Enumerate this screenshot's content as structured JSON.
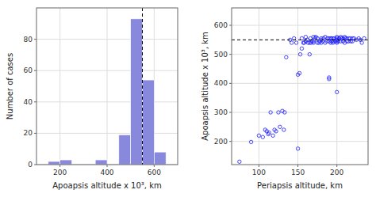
{
  "chart_data": [
    {
      "type": "histogram",
      "bins": [
        100,
        150,
        200,
        250,
        300,
        350,
        400,
        450,
        500,
        550,
        600,
        650,
        700
      ],
      "values": [
        0,
        2,
        3,
        0,
        0,
        3,
        0,
        19,
        93,
        54,
        8,
        0
      ],
      "color": "#8888dd",
      "xlim": [
        100,
        700
      ],
      "ylim": [
        0,
        100
      ],
      "xticks": [
        200,
        400,
        600
      ],
      "yticks": [
        0,
        20,
        40,
        60,
        80
      ],
      "vline": 550,
      "xlabel": "Apoapsis altitude x 10³, km",
      "ylabel": "Number of cases",
      "grid": true
    },
    {
      "type": "scatter",
      "x": [
        75,
        90,
        100,
        105,
        108,
        110,
        112,
        113,
        115,
        118,
        120,
        122,
        125,
        127,
        130,
        132,
        133,
        135,
        140,
        142,
        145,
        148,
        150,
        150,
        152,
        153,
        155,
        155,
        157,
        158,
        160,
        160,
        162,
        163,
        165,
        165,
        166,
        167,
        168,
        170,
        170,
        170,
        172,
        173,
        175,
        175,
        177,
        178,
        180,
        180,
        180,
        182,
        183,
        185,
        185,
        187,
        188,
        190,
        190,
        190,
        190,
        192,
        192,
        193,
        193,
        195,
        195,
        195,
        197,
        198,
        200,
        200,
        200,
        200,
        200,
        200,
        202,
        203,
        205,
        205,
        205,
        207,
        208,
        210,
        210,
        210,
        212,
        213,
        215,
        215,
        217,
        218,
        220,
        220,
        222,
        225,
        228,
        230,
        232,
        235
      ],
      "values": [
        130,
        198,
        220,
        215,
        240,
        235,
        225,
        230,
        300,
        220,
        240,
        235,
        300,
        250,
        305,
        240,
        300,
        490,
        550,
        540,
        555,
        540,
        175,
        430,
        435,
        500,
        520,
        555,
        540,
        540,
        560,
        545,
        550,
        540,
        500,
        540,
        555,
        540,
        545,
        560,
        540,
        545,
        555,
        560,
        540,
        555,
        540,
        545,
        540,
        555,
        550,
        545,
        555,
        540,
        560,
        545,
        555,
        415,
        420,
        545,
        555,
        540,
        555,
        545,
        555,
        540,
        545,
        555,
        555,
        545,
        540,
        550,
        545,
        555,
        560,
        370,
        545,
        555,
        545,
        555,
        560,
        555,
        545,
        540,
        555,
        560,
        555,
        545,
        545,
        555,
        555,
        545,
        555,
        545,
        555,
        550,
        555,
        550,
        540,
        555
      ],
      "color": "#1a1aff",
      "xlim": [
        65,
        240
      ],
      "ylim": [
        120,
        660
      ],
      "xticks": [
        100,
        150,
        200
      ],
      "yticks": [
        200,
        300,
        400,
        500,
        600
      ],
      "hline": 550,
      "xlabel": "Periapsis altitude, km",
      "ylabel": "Apoapsis altitude x 10³, km",
      "grid": true
    }
  ]
}
